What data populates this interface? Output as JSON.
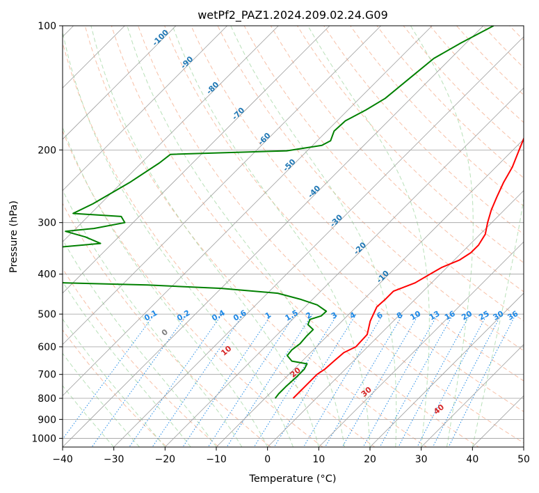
{
  "chart_data": {
    "type": "line",
    "subtype": "skew-t",
    "title": "wetPf2_PAZ1.2024.209.02.24.G09",
    "xlabel": "Temperature (°C)",
    "ylabel": "Pressure (hPa)",
    "xlim": [
      -40,
      50
    ],
    "ylim": [
      1050,
      100
    ],
    "yscale": "log",
    "grid": true,
    "x_ticks": [
      -40,
      -30,
      -20,
      -10,
      0,
      10,
      20,
      30,
      40,
      50
    ],
    "x_tick_labels": [
      "−40",
      "−30",
      "−20",
      "−10",
      "0",
      "10",
      "20",
      "30",
      "40",
      "50"
    ],
    "y_ticks": [
      100,
      200,
      300,
      400,
      500,
      600,
      700,
      800,
      900,
      1000
    ],
    "y_tick_labels": [
      "100",
      "200",
      "300",
      "400",
      "500",
      "600",
      "700",
      "800",
      "900",
      "1000"
    ],
    "series": [
      {
        "role": "temperature",
        "color": "#ff0000",
        "points": [
          [
            -14.5,
            100
          ],
          [
            -14.0,
            110
          ],
          [
            -13.8,
            120
          ],
          [
            -13.5,
            130
          ],
          [
            -13.2,
            140
          ],
          [
            -12.6,
            160
          ],
          [
            -11.0,
            180
          ],
          [
            -8.8,
            200
          ],
          [
            -6.8,
            220
          ],
          [
            -5.5,
            240
          ],
          [
            -4.0,
            260
          ],
          [
            -2.5,
            280
          ],
          [
            -0.8,
            300
          ],
          [
            1.0,
            320
          ],
          [
            1.8,
            340
          ],
          [
            1.8,
            355
          ],
          [
            1.0,
            370
          ],
          [
            -1.0,
            385
          ],
          [
            -2.0,
            400
          ],
          [
            -3.2,
            420
          ],
          [
            -5.8,
            440
          ],
          [
            -5.8,
            460
          ],
          [
            -6.0,
            480
          ],
          [
            -4.5,
            520
          ],
          [
            -2.5,
            560
          ],
          [
            -2.3,
            600
          ],
          [
            -3.5,
            620
          ],
          [
            -3.8,
            650
          ],
          [
            -4.0,
            680
          ],
          [
            -4.5,
            700
          ],
          [
            -4.5,
            750
          ],
          [
            -4.5,
            800
          ]
        ]
      },
      {
        "role": "dewpoint",
        "color": "#008000",
        "points": [
          [
            -38.0,
            100
          ],
          [
            -41.0,
            110
          ],
          [
            -43.3,
            120
          ],
          [
            -44.2,
            135
          ],
          [
            -45.0,
            150
          ],
          [
            -46.5,
            160
          ],
          [
            -48.4,
            170
          ],
          [
            -48.6,
            180
          ],
          [
            -47.4,
            190
          ],
          [
            -48.2,
            195
          ],
          [
            -54.0,
            201
          ],
          [
            -76.0,
            205
          ],
          [
            -76.5,
            215
          ],
          [
            -78.5,
            240
          ],
          [
            -81.5,
            270
          ],
          [
            -83.5,
            285
          ],
          [
            -73.5,
            290
          ],
          [
            -71.6,
            300
          ],
          [
            -76.5,
            310
          ],
          [
            -81.5,
            315
          ],
          [
            -76.5,
            325
          ],
          [
            -72.3,
            337
          ],
          [
            -80.5,
            345
          ],
          [
            -97.0,
            348
          ],
          [
            -102.0,
            390
          ],
          [
            -94.0,
            410
          ],
          [
            -71.5,
            420
          ],
          [
            -55.0,
            425
          ],
          [
            -40.0,
            433
          ],
          [
            -28.0,
            445
          ],
          [
            -22.5,
            460
          ],
          [
            -18.0,
            475
          ],
          [
            -15.0,
            492
          ],
          [
            -15.1,
            505
          ],
          [
            -16.6,
            515
          ],
          [
            -16.0,
            530
          ],
          [
            -14.0,
            545
          ],
          [
            -14.0,
            565
          ],
          [
            -13.8,
            590
          ],
          [
            -14.2,
            610
          ],
          [
            -14.0,
            630
          ],
          [
            -12.0,
            650
          ],
          [
            -8.5,
            660
          ],
          [
            -8.0,
            680
          ],
          [
            -8.0,
            710
          ],
          [
            -8.2,
            750
          ],
          [
            -8.2,
            780
          ],
          [
            -8.0,
            800
          ]
        ]
      }
    ],
    "isotherm_labels": {
      "color": "#1f77b4",
      "values": [
        -100,
        -90,
        -80,
        -70,
        -60,
        -50,
        -40,
        -30,
        -20,
        -10
      ]
    },
    "dry_adiabat_labels": {
      "color": "#d62728",
      "values": [
        0,
        10,
        20,
        30,
        40
      ]
    },
    "mixing_ratio_labels": {
      "color": "#1e88e5",
      "values": [
        "0.1",
        "0.2",
        "0.4",
        "0.6",
        "1",
        "1.5",
        "2",
        "3",
        "4",
        "6",
        "8",
        "10",
        "13",
        "16",
        "20",
        "25",
        "30",
        "36"
      ]
    }
  }
}
